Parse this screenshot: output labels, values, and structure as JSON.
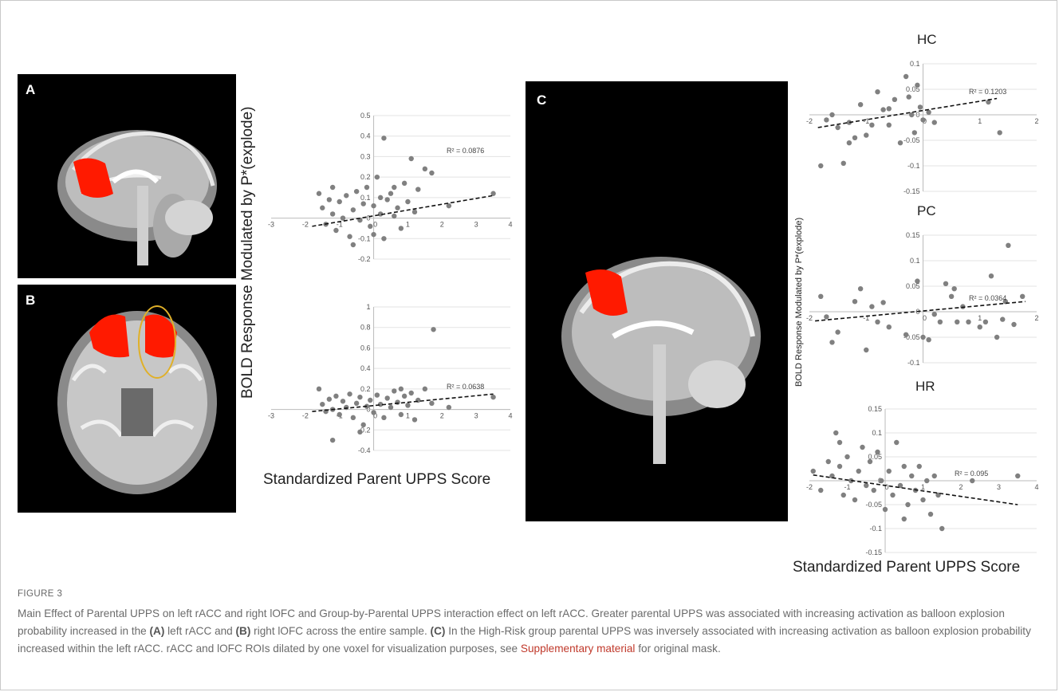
{
  "panels": {
    "a_letter": "A",
    "b_letter": "B",
    "c_letter": "C"
  },
  "left_axis_label": "BOLD Response Modulated by P*(explode)",
  "left_x_label": "Standardized Parent UPPS Score",
  "right_axis_label": "BOLD Response Modulated by P*(explode)",
  "right_x_label": "Standardized Parent UPPS Score",
  "caption": {
    "figure_label": "FIGURE 3",
    "line1": "Main Effect of Parental UPPS on left rACC and right lOFC and Group-by-Parental UPPS interaction effect on left rACC. Greater parental UPPS was associated with increasing activation as balloon explosion probability increased in the",
    "a_ref": "(A)",
    "part2": " left rACC and ",
    "b_ref": "(B)",
    "part3": " right lOFC across the entire sample. ",
    "c_ref": "(C)",
    "part4": " In the High-Risk group parental UPPS was inversely associated with increasing activation as balloon explosion probability increased within the left rACC. rACC and lOFC ROIs dilated by one voxel for visualization purposes, see ",
    "link": "Supplementary material",
    "part5": " for original mask."
  },
  "chart_data": [
    {
      "type": "scatter",
      "id": "A",
      "title": "",
      "r2_label": "R² = 0.0876",
      "xlim": [
        -3,
        4
      ],
      "ylim": [
        -0.2,
        0.5
      ],
      "x_ticks": [
        "-3",
        "-2",
        "-1",
        "0",
        "1",
        "2",
        "3",
        "4"
      ],
      "y_ticks": [
        "0.5",
        "0.4",
        "0.3",
        "0.2",
        "0.1",
        "0",
        "-0.1",
        "-0.2"
      ],
      "trend": [
        [
          -1.8,
          -0.04
        ],
        [
          3.5,
          0.11
        ]
      ],
      "points": [
        [
          -1.6,
          0.12
        ],
        [
          -1.5,
          0.05
        ],
        [
          -1.4,
          -0.03
        ],
        [
          -1.3,
          0.09
        ],
        [
          -1.2,
          0.02
        ],
        [
          -1.1,
          -0.06
        ],
        [
          -1.0,
          0.08
        ],
        [
          -0.9,
          0.0
        ],
        [
          -0.8,
          0.11
        ],
        [
          -0.7,
          -0.09
        ],
        [
          -0.6,
          0.04
        ],
        [
          -0.5,
          0.13
        ],
        [
          -0.4,
          -0.01
        ],
        [
          -0.3,
          0.07
        ],
        [
          -0.2,
          0.15
        ],
        [
          -0.1,
          -0.04
        ],
        [
          0.0,
          0.06
        ],
        [
          0.1,
          0.2
        ],
        [
          0.2,
          0.02
        ],
        [
          0.3,
          -0.1
        ],
        [
          0.4,
          0.09
        ],
        [
          0.5,
          0.12
        ],
        [
          0.6,
          0.01
        ],
        [
          0.7,
          0.05
        ],
        [
          0.8,
          -0.05
        ],
        [
          0.9,
          0.17
        ],
        [
          1.0,
          0.08
        ],
        [
          1.1,
          0.29
        ],
        [
          1.2,
          0.03
        ],
        [
          1.3,
          0.14
        ],
        [
          1.5,
          0.24
        ],
        [
          1.7,
          0.22
        ],
        [
          2.2,
          0.06
        ],
        [
          3.5,
          0.12
        ],
        [
          0.3,
          0.39
        ],
        [
          0.0,
          -0.08
        ],
        [
          -0.6,
          -0.13
        ],
        [
          0.6,
          0.15
        ],
        [
          -1.2,
          0.15
        ],
        [
          0.2,
          0.1
        ]
      ]
    },
    {
      "type": "scatter",
      "id": "B",
      "title": "",
      "r2_label": "R² = 0.0638",
      "xlim": [
        -3,
        4
      ],
      "ylim": [
        -0.4,
        1
      ],
      "x_ticks": [
        "-3",
        "-2",
        "-1",
        "0",
        "1",
        "2",
        "3",
        "4"
      ],
      "y_ticks": [
        "1",
        "0.8",
        "0.6",
        "0.4",
        "0.2",
        "0",
        "-0.2",
        "-0.4"
      ],
      "trend": [
        [
          -1.8,
          -0.02
        ],
        [
          3.5,
          0.15
        ]
      ],
      "points": [
        [
          -1.6,
          0.2
        ],
        [
          -1.5,
          0.05
        ],
        [
          -1.4,
          -0.02
        ],
        [
          -1.3,
          0.1
        ],
        [
          -1.2,
          0.0
        ],
        [
          -1.1,
          0.13
        ],
        [
          -1.0,
          -0.05
        ],
        [
          -0.9,
          0.08
        ],
        [
          -0.8,
          0.02
        ],
        [
          -0.7,
          0.15
        ],
        [
          -0.6,
          -0.08
        ],
        [
          -0.5,
          0.06
        ],
        [
          -0.4,
          0.12
        ],
        [
          -0.3,
          -0.15
        ],
        [
          -0.2,
          0.03
        ],
        [
          -0.1,
          0.09
        ],
        [
          0.0,
          -0.03
        ],
        [
          0.1,
          0.14
        ],
        [
          0.2,
          0.05
        ],
        [
          0.3,
          -0.08
        ],
        [
          0.4,
          0.11
        ],
        [
          0.5,
          0.02
        ],
        [
          0.6,
          0.18
        ],
        [
          0.7,
          0.07
        ],
        [
          0.8,
          -0.05
        ],
        [
          0.9,
          0.13
        ],
        [
          1.0,
          0.04
        ],
        [
          1.1,
          0.16
        ],
        [
          1.2,
          -0.1
        ],
        [
          1.3,
          0.09
        ],
        [
          1.5,
          0.2
        ],
        [
          1.7,
          0.06
        ],
        [
          2.2,
          0.02
        ],
        [
          3.5,
          0.12
        ],
        [
          1.75,
          0.78
        ],
        [
          -1.2,
          -0.3
        ],
        [
          -0.4,
          -0.22
        ],
        [
          0.8,
          0.2
        ]
      ]
    },
    {
      "type": "scatter",
      "id": "HC",
      "title": "HC",
      "r2_label": "R² = 0.1203",
      "xlim": [
        -2,
        2
      ],
      "ylim": [
        -0.15,
        0.1
      ],
      "x_ticks": [
        "-2",
        "-1",
        "0",
        "1",
        "2"
      ],
      "y_ticks": [
        "0.1",
        "0.05",
        "0",
        "-0.05",
        "-0.1",
        "-0.15"
      ],
      "trend": [
        [
          -1.85,
          -0.025
        ],
        [
          1.3,
          0.032
        ]
      ],
      "points": [
        [
          -1.8,
          -0.1
        ],
        [
          -1.7,
          -0.01
        ],
        [
          -1.6,
          0.0
        ],
        [
          -1.5,
          -0.025
        ],
        [
          -1.4,
          -0.095
        ],
        [
          -1.3,
          -0.015
        ],
        [
          -1.2,
          -0.045
        ],
        [
          -1.1,
          0.02
        ],
        [
          -1.0,
          -0.04
        ],
        [
          -0.9,
          -0.02
        ],
        [
          -0.8,
          0.045
        ],
        [
          -0.7,
          0.01
        ],
        [
          -0.6,
          -0.02
        ],
        [
          -0.5,
          0.03
        ],
        [
          -0.4,
          -0.055
        ],
        [
          -0.3,
          0.075
        ],
        [
          -0.2,
          0.0
        ],
        [
          -0.15,
          -0.035
        ],
        [
          -0.1,
          0.058
        ],
        [
          -0.05,
          0.015
        ],
        [
          0.0,
          -0.01
        ],
        [
          0.1,
          0.005
        ],
        [
          0.2,
          -0.015
        ],
        [
          1.15,
          0.025
        ],
        [
          1.35,
          -0.035
        ],
        [
          -0.25,
          0.035
        ],
        [
          -0.6,
          0.012
        ],
        [
          -1.3,
          -0.055
        ]
      ]
    },
    {
      "type": "scatter",
      "id": "PC",
      "title": "PC",
      "r2_label": "R² = 0.0364",
      "xlim": [
        -2,
        2
      ],
      "ylim": [
        -0.1,
        0.15
      ],
      "x_ticks": [
        "-2",
        "-1",
        "0",
        "1",
        "2"
      ],
      "y_ticks": [
        "0.15",
        "0.1",
        "0.05",
        "0",
        "-0.05",
        "-0.1"
      ],
      "trend": [
        [
          -1.9,
          -0.018
        ],
        [
          1.8,
          0.02
        ]
      ],
      "points": [
        [
          -1.8,
          0.03
        ],
        [
          -1.7,
          -0.01
        ],
        [
          -1.6,
          -0.06
        ],
        [
          -1.5,
          -0.04
        ],
        [
          -1.2,
          0.02
        ],
        [
          -1.1,
          0.045
        ],
        [
          -1.0,
          -0.075
        ],
        [
          -0.9,
          0.01
        ],
        [
          -0.8,
          -0.02
        ],
        [
          -0.7,
          0.018
        ],
        [
          -0.6,
          -0.03
        ],
        [
          -0.3,
          -0.045
        ],
        [
          -0.1,
          0.06
        ],
        [
          0.0,
          -0.05
        ],
        [
          0.2,
          -0.005
        ],
        [
          0.3,
          -0.02
        ],
        [
          0.4,
          0.055
        ],
        [
          0.5,
          0.03
        ],
        [
          0.55,
          0.045
        ],
        [
          0.6,
          -0.02
        ],
        [
          0.7,
          0.01
        ],
        [
          0.8,
          -0.02
        ],
        [
          1.1,
          -0.02
        ],
        [
          1.2,
          0.07
        ],
        [
          1.3,
          -0.05
        ],
        [
          1.4,
          -0.015
        ],
        [
          1.5,
          0.13
        ],
        [
          1.6,
          -0.025
        ],
        [
          1.75,
          0.03
        ],
        [
          1.45,
          0.02
        ],
        [
          1.0,
          -0.03
        ],
        [
          0.1,
          -0.055
        ]
      ]
    },
    {
      "type": "scatter",
      "id": "HR",
      "title": "HR",
      "r2_label": "R² = 0.095",
      "xlim": [
        -2,
        4
      ],
      "ylim": [
        -0.15,
        0.15
      ],
      "x_ticks": [
        "-2",
        "-1",
        "0",
        "1",
        "2",
        "3",
        "4"
      ],
      "y_ticks": [
        "0.15",
        "0.1",
        "0.05",
        "0",
        "-0.05",
        "-0.1",
        "-0.15"
      ],
      "trend": [
        [
          -1.9,
          0.012
        ],
        [
          3.5,
          -0.05
        ]
      ],
      "points": [
        [
          -1.9,
          0.02
        ],
        [
          -1.7,
          -0.02
        ],
        [
          -1.5,
          0.04
        ],
        [
          -1.4,
          0.01
        ],
        [
          -1.3,
          0.1
        ],
        [
          -1.2,
          0.03
        ],
        [
          -1.1,
          -0.03
        ],
        [
          -1.0,
          0.05
        ],
        [
          -0.9,
          0.0
        ],
        [
          -0.8,
          -0.04
        ],
        [
          -0.7,
          0.02
        ],
        [
          -0.6,
          0.07
        ],
        [
          -0.5,
          -0.01
        ],
        [
          -0.4,
          0.04
        ],
        [
          -0.3,
          -0.02
        ],
        [
          -0.2,
          0.06
        ],
        [
          -0.1,
          0.0
        ],
        [
          0.0,
          -0.06
        ],
        [
          0.1,
          0.02
        ],
        [
          0.2,
          -0.03
        ],
        [
          0.3,
          0.08
        ],
        [
          0.4,
          -0.01
        ],
        [
          0.5,
          0.03
        ],
        [
          0.6,
          -0.05
        ],
        [
          0.7,
          0.01
        ],
        [
          0.8,
          -0.02
        ],
        [
          0.9,
          0.03
        ],
        [
          1.0,
          -0.04
        ],
        [
          1.1,
          0.0
        ],
        [
          1.2,
          -0.07
        ],
        [
          1.3,
          0.01
        ],
        [
          1.4,
          -0.03
        ],
        [
          1.5,
          -0.1
        ],
        [
          2.3,
          0.0
        ],
        [
          3.5,
          0.01
        ],
        [
          0.5,
          -0.08
        ],
        [
          -1.2,
          0.08
        ]
      ]
    }
  ]
}
